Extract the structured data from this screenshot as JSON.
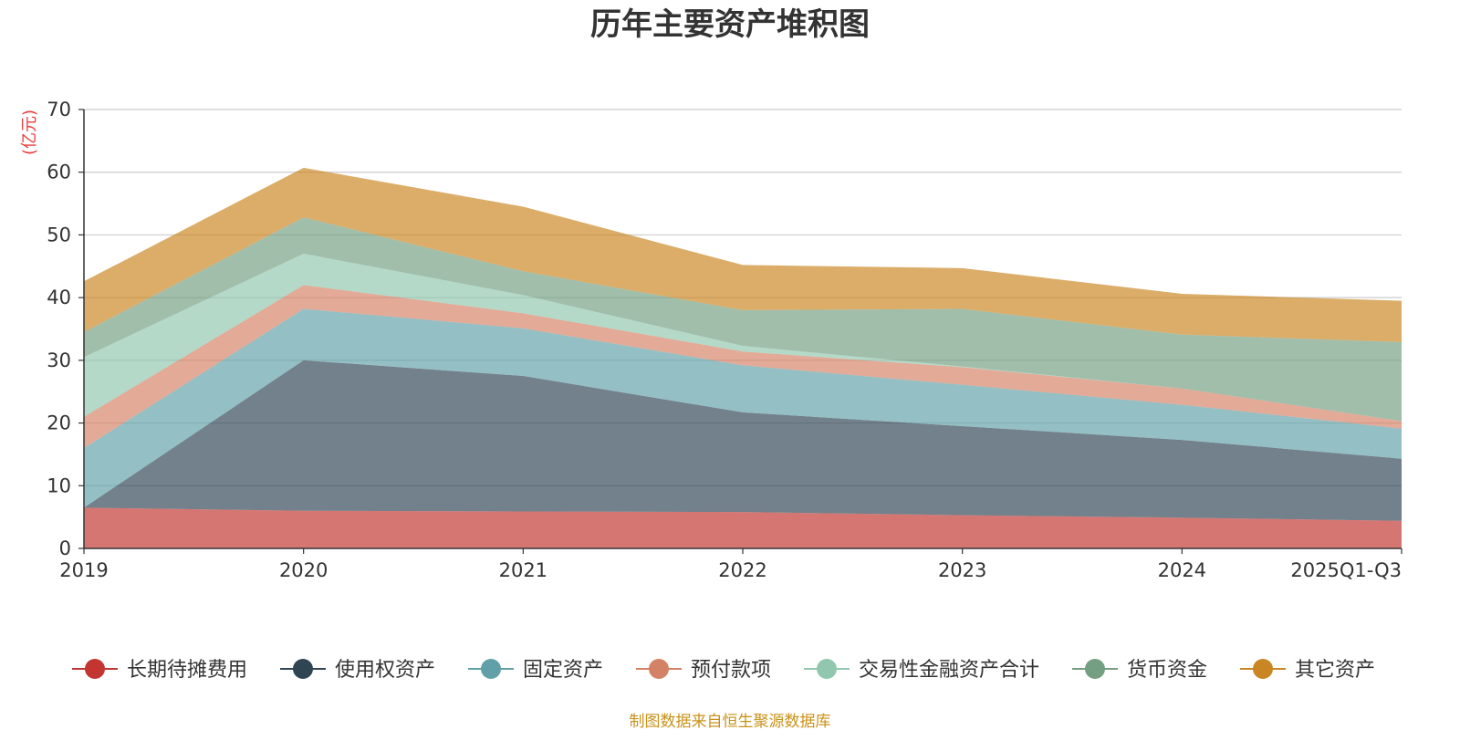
{
  "chart_data": {
    "type": "area",
    "stacked": true,
    "title": "历年主要资产堆积图",
    "unit_label": "(亿元)",
    "x": [
      "2019",
      "2020",
      "2021",
      "2022",
      "2023",
      "2024",
      "2025Q1-Q3"
    ],
    "ylim": [
      0,
      70
    ],
    "yticks": [
      0,
      10,
      20,
      30,
      40,
      50,
      60,
      70
    ],
    "grid": true,
    "legend_position": "bottom",
    "series": [
      {
        "name": "长期待摊费用",
        "color": "#c23531",
        "values": [
          6.5,
          6.0,
          5.9,
          5.8,
          5.3,
          4.9,
          4.4
        ]
      },
      {
        "name": "使用权资产",
        "color": "#2f4554",
        "values": [
          0.0,
          24.0,
          21.6,
          15.9,
          14.2,
          12.4,
          9.9
        ]
      },
      {
        "name": "固定资产",
        "color": "#61a0a8",
        "values": [
          9.5,
          8.2,
          7.6,
          7.5,
          6.6,
          5.6,
          4.8
        ]
      },
      {
        "name": "预付款项",
        "color": "#d48265",
        "values": [
          5.0,
          3.8,
          2.4,
          2.2,
          2.8,
          2.6,
          1.2
        ]
      },
      {
        "name": "交易性金融资产合计",
        "color": "#91c7ae",
        "values": [
          9.5,
          5.0,
          2.9,
          0.9,
          0.1,
          0.0,
          0.0
        ]
      },
      {
        "name": "货币资金",
        "color": "#749f83",
        "values": [
          4.0,
          5.8,
          3.8,
          5.7,
          9.2,
          8.6,
          12.6
        ]
      },
      {
        "name": "其它资产",
        "color": "#ca8622",
        "values": [
          8.1,
          7.9,
          10.3,
          7.2,
          6.5,
          6.5,
          6.6
        ]
      }
    ],
    "source": "制图数据来自恒生聚源数据库"
  }
}
